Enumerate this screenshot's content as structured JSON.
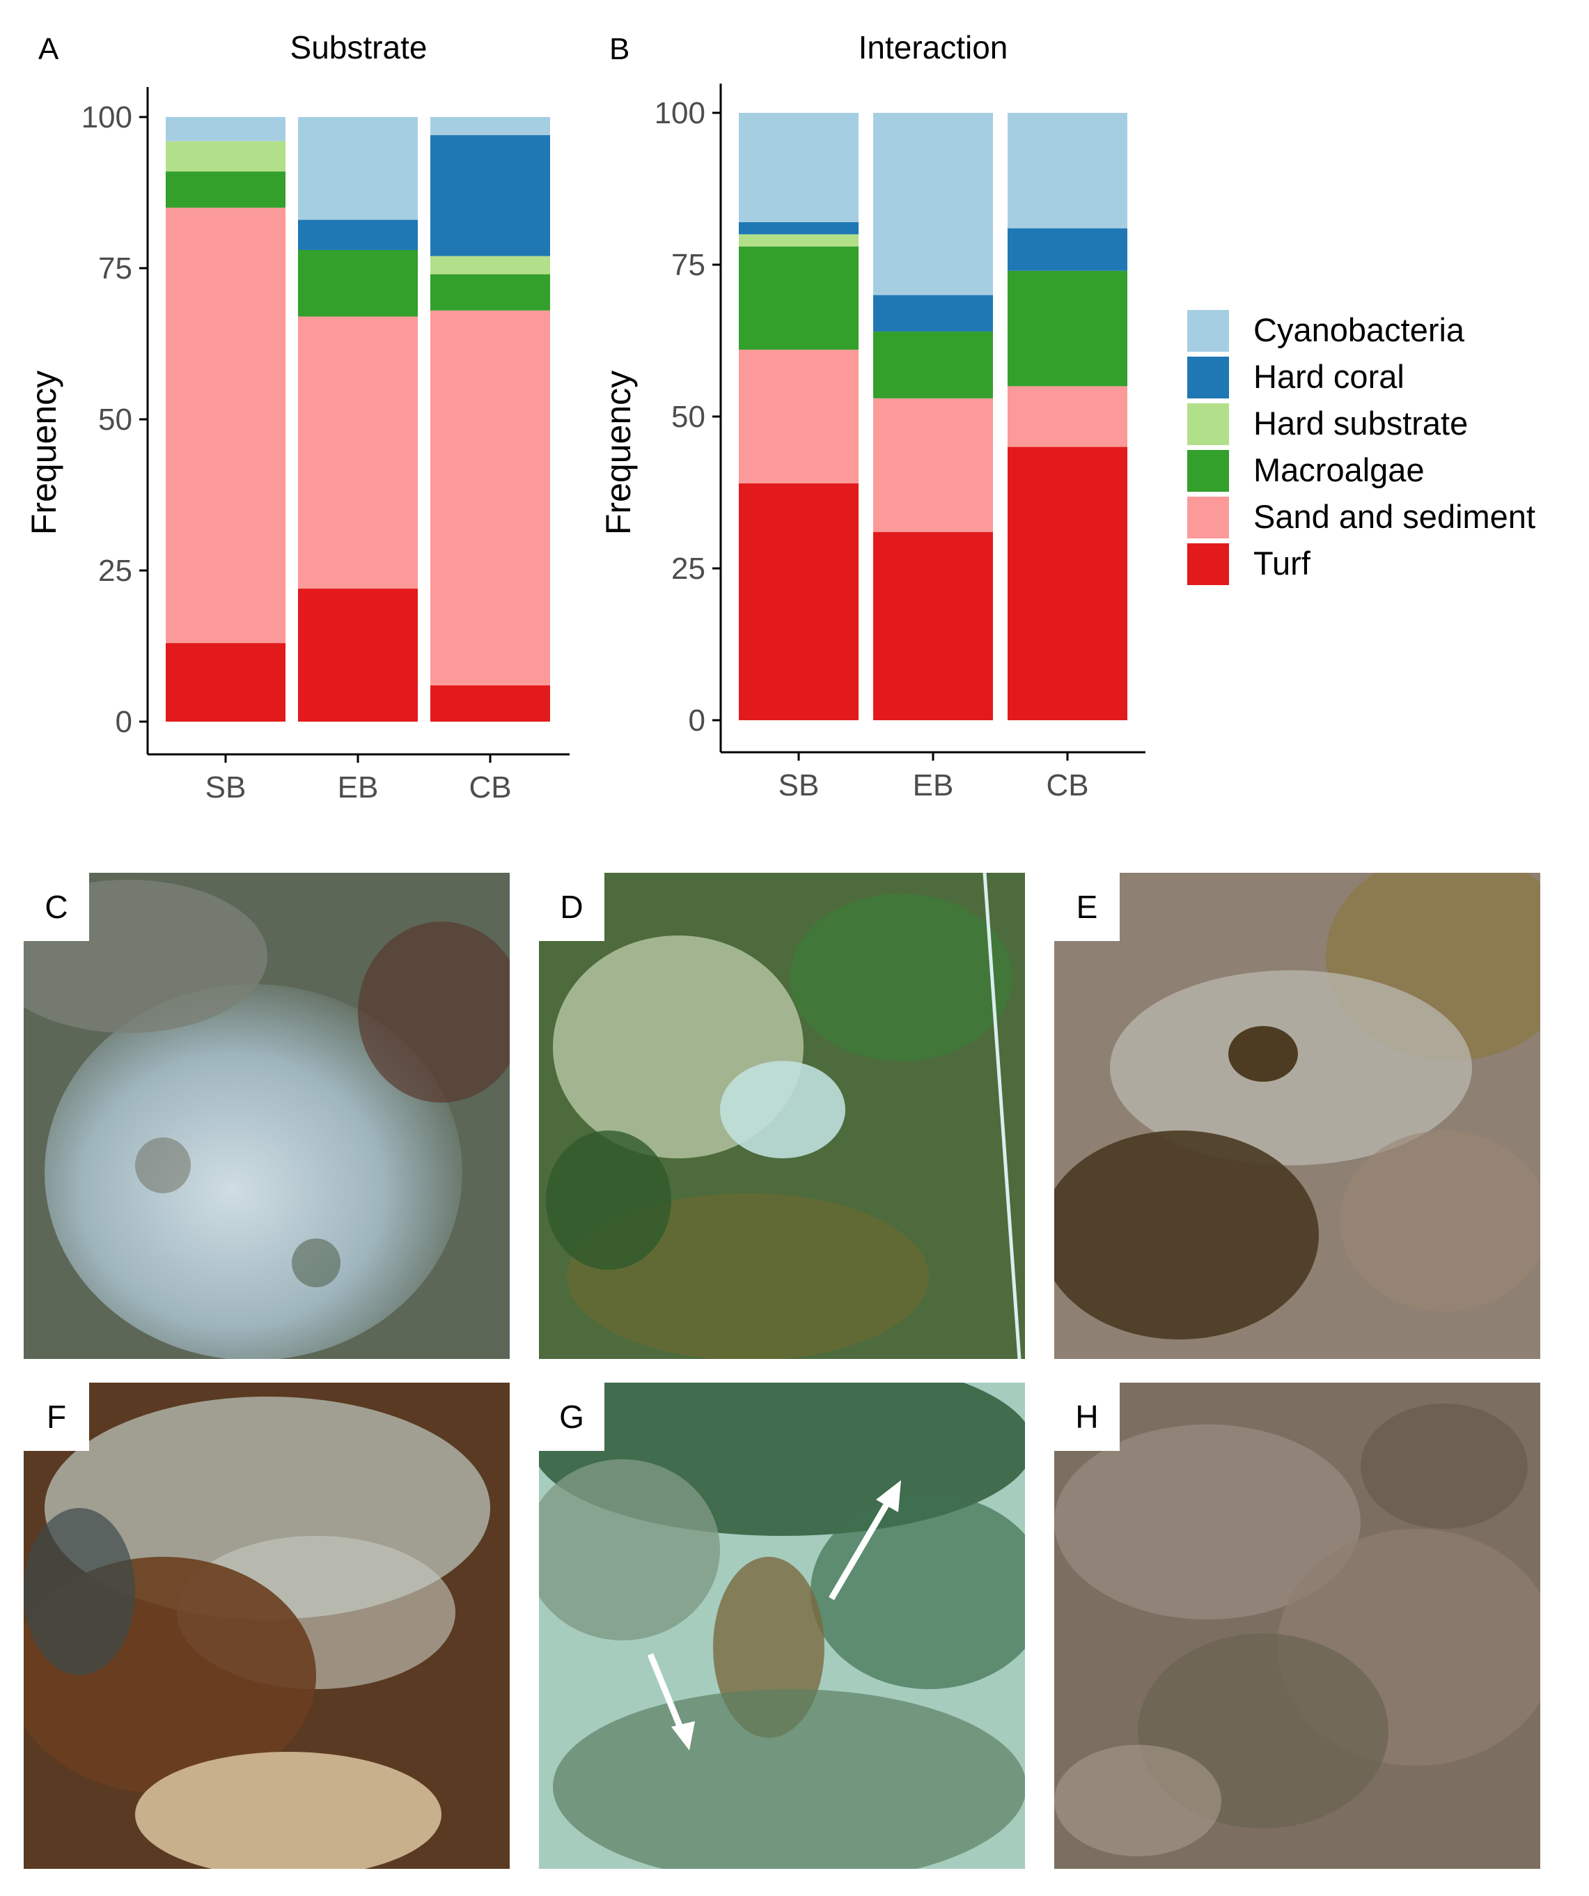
{
  "chart_data": [
    {
      "panel": "A",
      "type": "bar",
      "stacked": true,
      "title": "Substrate",
      "xlabel": "",
      "ylabel": "Frequency",
      "categories": [
        "SB",
        "EB",
        "CB"
      ],
      "ylim": [
        0,
        100
      ],
      "yticks": [
        "0",
        "25",
        "50",
        "75",
        "100"
      ],
      "series": [
        {
          "name": "Turf",
          "values": [
            13,
            22,
            6
          ]
        },
        {
          "name": "Sand and sediment",
          "values": [
            72,
            45,
            62
          ]
        },
        {
          "name": "Macroalgae",
          "values": [
            6,
            11,
            6
          ]
        },
        {
          "name": "Hard substrate",
          "values": [
            5,
            0,
            3
          ]
        },
        {
          "name": "Hard coral",
          "values": [
            0,
            5,
            20
          ]
        },
        {
          "name": "Cyanobacteria",
          "values": [
            4,
            17,
            3
          ]
        }
      ],
      "grid": false
    },
    {
      "panel": "B",
      "type": "bar",
      "stacked": true,
      "title": "Interaction",
      "xlabel": "",
      "ylabel": "Frequency",
      "categories": [
        "SB",
        "EB",
        "CB"
      ],
      "ylim": [
        0,
        100
      ],
      "yticks": [
        "0",
        "25",
        "50",
        "75",
        "100"
      ],
      "series": [
        {
          "name": "Turf",
          "values": [
            39,
            31,
            45
          ]
        },
        {
          "name": "Sand and sediment",
          "values": [
            22,
            22,
            10
          ]
        },
        {
          "name": "Macroalgae",
          "values": [
            17,
            11,
            19
          ]
        },
        {
          "name": "Hard substrate",
          "values": [
            2,
            0,
            0
          ]
        },
        {
          "name": "Hard coral",
          "values": [
            2,
            6,
            7
          ]
        },
        {
          "name": "Cyanobacteria",
          "values": [
            18,
            30,
            19
          ]
        }
      ],
      "grid": false
    }
  ],
  "legend": {
    "position": "right",
    "entries": [
      {
        "name": "Cyanobacteria",
        "color": "#a6cee3"
      },
      {
        "name": "Hard coral",
        "color": "#1f78b4"
      },
      {
        "name": "Hard substrate",
        "color": "#b2df8a"
      },
      {
        "name": "Macroalgae",
        "color": "#33a02c"
      },
      {
        "name": "Sand and sediment",
        "color": "#fb9a99"
      },
      {
        "name": "Turf",
        "color": "#e31a1c"
      }
    ]
  },
  "panel_letters": {
    "A": "A",
    "B": "B"
  },
  "photos": [
    {
      "label": "C",
      "scene": "bleached coral colony with turf"
    },
    {
      "label": "D",
      "scene": "macroalgae with bleached coral on sand"
    },
    {
      "label": "E",
      "scene": "brain coral with turf and dark algae"
    },
    {
      "label": "F",
      "scene": "brown macroalgae with branching coral"
    },
    {
      "label": "G",
      "scene": "green algae on sand with arrows"
    },
    {
      "label": "H",
      "scene": "turf and sediment covered reef"
    }
  ]
}
